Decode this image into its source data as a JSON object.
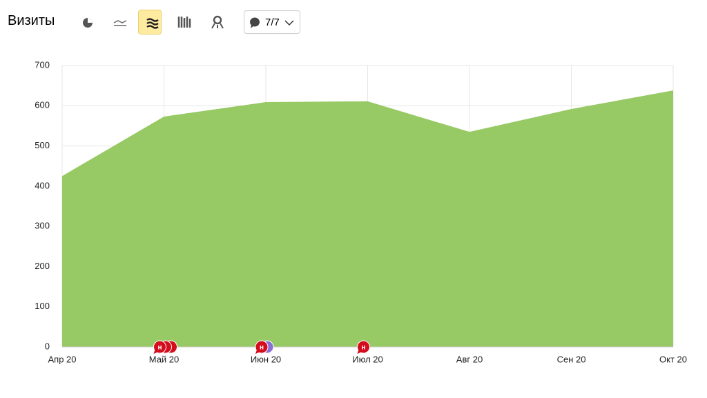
{
  "chart_data": {
    "type": "area",
    "title": "Визиты",
    "comments_button": "7/7",
    "categories": [
      "Апр 20",
      "Май 20",
      "Июн 20",
      "Июл 20",
      "Авг 20",
      "Сен 20",
      "Окт 20"
    ],
    "values": [
      425,
      573,
      609,
      611,
      535,
      592,
      638
    ],
    "color": "#97c965",
    "ylim": [
      0,
      700
    ],
    "yticks": [
      0,
      100,
      200,
      300,
      400,
      500,
      600,
      700
    ],
    "grid": true,
    "annotations": [
      {
        "category": "Май 20",
        "label": "н",
        "color": "#d40c1c"
      },
      {
        "category": "Май 20",
        "color": "#d40c1c"
      },
      {
        "category": "Май 20",
        "color": "#d40c1c"
      },
      {
        "category": "Июн 20",
        "label": "н",
        "color": "#d40c1c"
      },
      {
        "category": "Июн 20",
        "color": "#8a6fd4"
      },
      {
        "category": "Июл 20",
        "label": "н",
        "color": "#d40c1c"
      }
    ]
  }
}
